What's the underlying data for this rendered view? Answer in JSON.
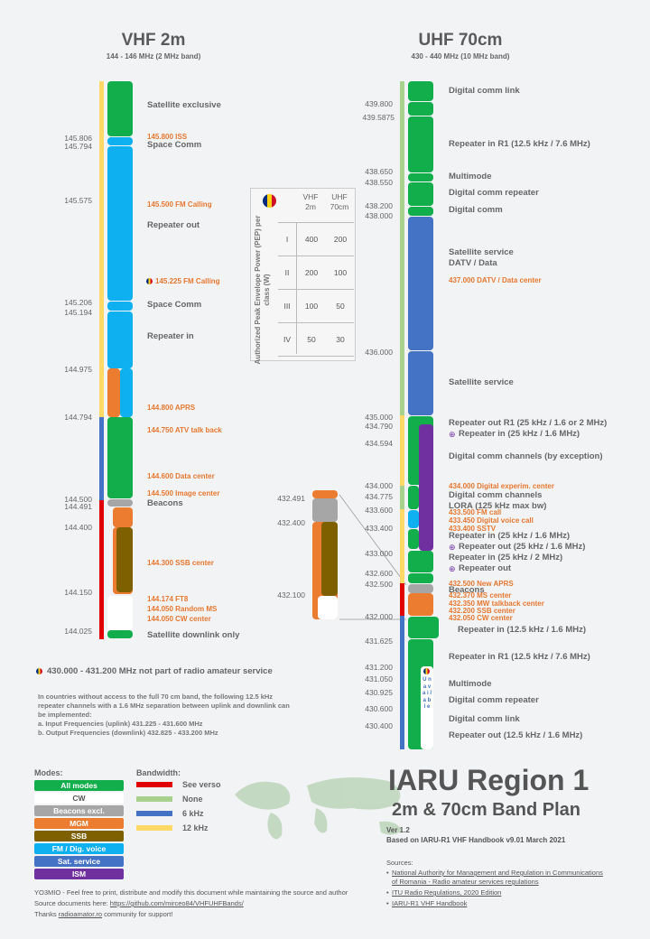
{
  "vhf": {
    "title": "VHF 2m",
    "subtitle": "144 - 146 MHz (2 MHz band)",
    "freqs": [
      "145.806",
      "145.794",
      "145.575",
      "145.206",
      "145.194",
      "144.975",
      "144.794",
      "144.500",
      "144.491",
      "144.400",
      "144.150",
      "144.025"
    ],
    "labels": [
      "Satellite exclusive",
      "Space Comm",
      "Repeater out",
      "Space Comm",
      "Repeater in",
      "Beacons",
      "Satellite downlink only"
    ],
    "orange": [
      "145.800 ISS",
      "145.500 FM Calling",
      "145.225 FM Calling",
      "144.800 APRS",
      "144.750 ATV talk back",
      "144.600 Data center",
      "144.500 Image center",
      "144.300 SSB center",
      "144.174 FT8",
      "144.050 Random MS",
      "144.050 CW center"
    ]
  },
  "uhf": {
    "title": "UHF 70cm",
    "subtitle": "430 - 440 MHz (10 MHz band)",
    "freqs": [
      "439.800",
      "439.5875",
      "438.650",
      "438.550",
      "438.200",
      "438.000",
      "436.000",
      "435.000",
      "434.790",
      "434.594",
      "434.000",
      "434.775",
      "433.600",
      "433.400",
      "433.000",
      "432.600",
      "432.500",
      "432.000",
      "431.625",
      "431.200",
      "431.050",
      "430.925",
      "430.600",
      "430.400"
    ],
    "labels": [
      "Digital comm link",
      "Repeater in R1 (12.5 kHz / 7.6 MHz)",
      "Multimode",
      "Digital comm repeater",
      "Digital comm",
      "Satellite service",
      "DATV / Data",
      "Satellite service",
      "Repeater out R1 (25 kHz / 1.6 or 2 MHz)",
      "Repeater in (25 kHz / 1.6 MHz)",
      "Digital comm channels (by exception)",
      "Digital comm channels",
      "LORA (125 kHz max bw)",
      "Repeater in (25 kHz / 1.6 MHz)",
      "Repeater out (25 kHz / 1.6 MHz)",
      "Repeater in (25 kHz / 2 MHz)",
      "Repeater out",
      "Beacons",
      "Repeater in (12.5 kHz / 1.6 MHz)",
      "Repeater in R1 (12.5 kHz / 7.6 MHz)",
      "Multimode",
      "Digital comm repeater",
      "Digital comm link",
      "Repeater out (12.5 kHz / 1.6 MHz)"
    ],
    "orange": [
      "437.000 DATV / Data center",
      "434.000 Digital experim. center",
      "433.500 FM call",
      "433.450 Digital voice call",
      "433.400 SSTV",
      "432.500 New APRS",
      "432.370 MS center",
      "432.350 MW talkback center",
      "432.200 SSB center",
      "432.050 CW center"
    ],
    "zoom_freqs": [
      "432.491",
      "432.400",
      "432.100"
    ],
    "vertical_text": "U n a v a i l a b l e"
  },
  "pep": {
    "title": "Authorized Peak Envelope Power (PEP) per class (W)",
    "col1": "VHF 2m",
    "col2": "UHF 70cm",
    "rows": [
      {
        "cls": "I",
        "vhf": "400",
        "uhf": "200"
      },
      {
        "cls": "II",
        "vhf": "200",
        "uhf": "100"
      },
      {
        "cls": "III",
        "vhf": "100",
        "uhf": "50"
      },
      {
        "cls": "IV",
        "vhf": "50",
        "uhf": "30"
      }
    ]
  },
  "notes": {
    "not_amateur": "430.000 - 431.200 MHz not part of radio amateur service",
    "para": [
      "In countries without access to the full 70 cm band, the following 12.5 kHz",
      "repeater channels with a 1.6 MHz separation between uplink and downlink can",
      "be implemented:",
      "a. Input Frequencies (uplink) 431.225 - 431.600 MHz",
      "b. Output Frequencies (downlink) 432.825 - 433.200 MHz"
    ]
  },
  "legend": {
    "modes_title": "Modes:",
    "modes": [
      {
        "label": "All modes",
        "color": "#12ae4b",
        "text": "#ffffff"
      },
      {
        "label": "CW",
        "color": "#ffffff",
        "text": "#555555"
      },
      {
        "label": "Beacons excl.",
        "color": "#a6a6a6",
        "text": "#ffffff"
      },
      {
        "label": "MGM",
        "color": "#ec7c30",
        "text": "#ffffff"
      },
      {
        "label": "SSB",
        "color": "#7f6000",
        "text": "#ffffff"
      },
      {
        "label": "FM / Dig. voice",
        "color": "#0fb0f0",
        "text": "#ffffff"
      },
      {
        "label": "Sat. service",
        "color": "#4472c4",
        "text": "#ffffff"
      },
      {
        "label": "ISM",
        "color": "#7030a0",
        "text": "#ffffff"
      }
    ],
    "bw_title": "Bandwidth:",
    "bw": [
      {
        "label": "See verso",
        "color": "#e00000"
      },
      {
        "label": "None",
        "color": "#a9d18e"
      },
      {
        "label": "6 kHz",
        "color": "#4472c4"
      },
      {
        "label": "12 kHz",
        "color": "#ffd966"
      }
    ]
  },
  "title": {
    "main": "IARU Region 1",
    "sub": "2m & 70cm Band Plan",
    "ver": "Ver 1.2",
    "based": "Based on IARU-R1  VHF Handbook  v9.01  March  2021"
  },
  "sources": {
    "head": "Sources:",
    "items": [
      "National Authority for Management and Regulation in Communications",
      "of Romania - Radio amateur services regulations",
      "ITU Radio Regulations, 2020 Edition",
      "IARU-R1 VHF Handbook"
    ]
  },
  "footer": {
    "l1": "YO3MIO - Feel free to print, distribute and modify this document while maintaining the source and author",
    "l2a": "Source documents here: ",
    "l2b": "https://github.com/mirceo84/VHFUHFBands/",
    "l3a": "Thanks ",
    "l3b": "radioamator.ro",
    "l3c": " community for support!"
  },
  "colors": {
    "green": "#12ae4b",
    "blue": "#0fb0f0",
    "sat": "#4472c4",
    "orange": "#ec7c30",
    "ssb": "#7f6000",
    "gray": "#a6a6a6",
    "ism": "#7030a0",
    "red": "#e00000"
  }
}
